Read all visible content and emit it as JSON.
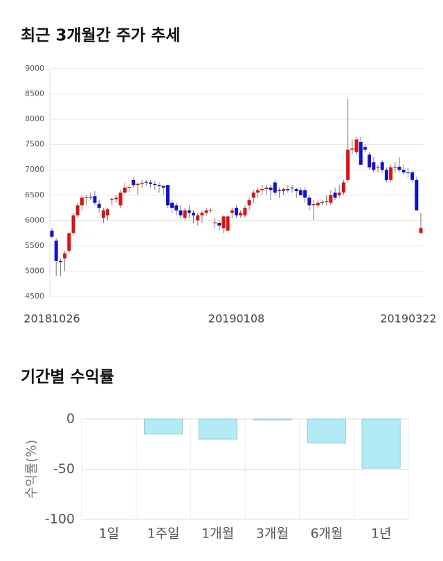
{
  "chart_data": [
    {
      "type": "candlestick",
      "title": "최근 3개월간 주가 추세",
      "categories": [
        "20181026",
        null,
        null,
        null,
        null,
        null,
        null,
        null,
        null,
        null,
        null,
        null,
        null,
        null,
        null,
        null,
        null,
        null,
        null,
        null,
        null,
        null,
        null,
        null,
        null,
        null,
        null,
        null,
        null,
        null,
        null,
        null,
        null,
        null,
        null,
        null,
        null,
        null,
        null,
        null,
        null,
        null,
        null,
        "20190108",
        null,
        null,
        null,
        null,
        null,
        null,
        null,
        null,
        null,
        null,
        null,
        null,
        null,
        null,
        null,
        null,
        null,
        null,
        null,
        null,
        null,
        null,
        null,
        null,
        null,
        null,
        null,
        null,
        null,
        null,
        null,
        null,
        null,
        null,
        null,
        null,
        null,
        null,
        null,
        null,
        null,
        null,
        "20190322"
      ],
      "open": [
        5800,
        5600,
        5200,
        5250,
        5400,
        5750,
        6100,
        6300,
        6450,
        6460,
        6480,
        6330,
        6050,
        6100,
        6400,
        6420,
        6300,
        6550,
        6650,
        6800,
        6700,
        6720,
        6760,
        6750,
        6720,
        6700,
        6680,
        6700,
        6350,
        6300,
        6200,
        6050,
        6200,
        6150,
        6000,
        6100,
        6150,
        6200,
        5950,
        5950,
        5850,
        5800,
        6150,
        6250,
        6100,
        6100,
        6300,
        6450,
        6550,
        6600,
        6620,
        6650,
        6750,
        6600,
        6580,
        6620,
        6650,
        6620,
        6600,
        6600,
        6450,
        6300,
        6300,
        6350,
        6360,
        6350,
        6550,
        6500,
        6550,
        6800,
        7400,
        7350,
        7550,
        7450,
        7300,
        7150,
        7050,
        7150,
        7000,
        6800,
        7050,
        7060,
        7000,
        6950,
        6950,
        6800,
        5750
      ],
      "high": [
        5850,
        5650,
        5250,
        5400,
        5750,
        6150,
        6350,
        6500,
        6500,
        6550,
        6580,
        6400,
        6250,
        6250,
        6450,
        6500,
        6600,
        6750,
        6700,
        6850,
        6750,
        6800,
        6800,
        6800,
        6780,
        6750,
        6700,
        6700,
        6400,
        6350,
        6300,
        6250,
        6300,
        6200,
        6150,
        6200,
        6250,
        6250,
        6050,
        6000,
        6100,
        6100,
        6250,
        6300,
        6200,
        6300,
        6450,
        6600,
        6650,
        6700,
        6700,
        6700,
        6800,
        6650,
        6650,
        6700,
        6700,
        6650,
        6650,
        6650,
        6500,
        6400,
        6400,
        6400,
        6500,
        6600,
        6650,
        6700,
        6800,
        8400,
        7600,
        7650,
        7650,
        7500,
        7350,
        7250,
        7100,
        7200,
        7050,
        7100,
        7150,
        7250,
        7100,
        7050,
        6980,
        6850,
        6150
      ],
      "low": [
        5650,
        4900,
        4900,
        5000,
        5350,
        5700,
        6050,
        6200,
        6300,
        6400,
        6300,
        6150,
        5950,
        6000,
        6300,
        6350,
        6250,
        6500,
        6550,
        6650,
        6500,
        6650,
        6680,
        6650,
        6600,
        6550,
        6500,
        6250,
        6150,
        6100,
        6050,
        6000,
        6050,
        5950,
        5900,
        5950,
        6100,
        6150,
        5850,
        5800,
        5750,
        5780,
        6050,
        6050,
        6050,
        6050,
        6200,
        6350,
        6450,
        6500,
        6500,
        6400,
        6500,
        6450,
        6500,
        6550,
        6550,
        6450,
        6500,
        6350,
        6200,
        6000,
        6250,
        6300,
        6300,
        6300,
        6400,
        6450,
        6500,
        6750,
        7300,
        7300,
        7100,
        7350,
        7000,
        6950,
        6950,
        6950,
        6750,
        6750,
        6950,
        6950,
        6900,
        6850,
        6750,
        6200,
        5750
      ],
      "close": [
        5680,
        5200,
        5180,
        5350,
        5750,
        6100,
        6300,
        6450,
        6460,
        6450,
        6350,
        6250,
        6200,
        6220,
        6420,
        6450,
        6550,
        6650,
        6660,
        6700,
        6720,
        6740,
        6750,
        6720,
        6700,
        6680,
        6650,
        6300,
        6250,
        6200,
        6100,
        6200,
        6150,
        6100,
        6100,
        6150,
        6200,
        6210,
        5960,
        5900,
        6080,
        6080,
        6200,
        6100,
        6150,
        6250,
        6400,
        6550,
        6600,
        6620,
        6650,
        6600,
        6550,
        6580,
        6620,
        6600,
        6640,
        6580,
        6500,
        6450,
        6300,
        6320,
        6350,
        6360,
        6380,
        6500,
        6450,
        6550,
        6750,
        7400,
        7420,
        7600,
        7100,
        7400,
        7050,
        7000,
        7060,
        7000,
        6800,
        7050,
        7060,
        7000,
        6950,
        6940,
        6800,
        6200,
        5850
      ],
      "up_color": "#dd1111",
      "down_color": "#1111cc",
      "ylim": [
        4500,
        9000
      ],
      "yticks": [
        4500,
        5000,
        5500,
        6000,
        6500,
        7000,
        7500,
        8000,
        8500,
        9000
      ],
      "grid": true
    },
    {
      "type": "bar",
      "title": "기간별 수익률",
      "y_label": "수익률(%)",
      "categories": [
        "1일",
        "1주일",
        "1개월",
        "3개월",
        "6개월",
        "1년"
      ],
      "values": [
        0,
        -15,
        -20,
        -1,
        -24,
        -49
      ],
      "color": "#b3ebf5",
      "edge_color": "#8fcdd8",
      "ylim": [
        -100,
        0
      ],
      "yticks": [
        0,
        -50,
        -100
      ],
      "grid": true
    }
  ]
}
